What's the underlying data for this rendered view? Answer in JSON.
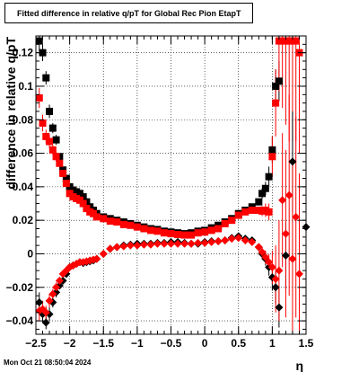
{
  "title": "Fitted difference in relative q/pT for Global Rec Pion EtapT",
  "timestamp": "Mon Oct 21 08:50:04 2024",
  "chart_data": {
    "type": "scatter",
    "xlabel": "η",
    "ylabel": "difference in relative q/pT",
    "xlim": [
      -2.5,
      1.5
    ],
    "ylim": [
      -0.048,
      0.13
    ],
    "grid": true,
    "x_ticks": [
      "−2.5",
      "−2",
      "−1.5",
      "−1",
      "−0.5",
      "0",
      "0.5",
      "1",
      "1.5"
    ],
    "x_tick_values": [
      -2.5,
      -2,
      -1.5,
      -1,
      -0.5,
      0,
      0.5,
      1,
      1.5
    ],
    "y_ticks": [
      "−0.04",
      "−0.02",
      "0",
      "0.02",
      "0.04",
      "0.06",
      "0.08",
      "0.1",
      "0.12"
    ],
    "y_tick_values": [
      -0.04,
      -0.02,
      0,
      0.02,
      0.04,
      0.06,
      0.08,
      0.1,
      0.12
    ],
    "colors": {
      "series_black": "#000000",
      "series_red": "#ff0000"
    },
    "series": [
      {
        "color": "black",
        "marker": "square",
        "x": [
          -2.45,
          -2.4,
          -2.35,
          -2.3,
          -2.25,
          -2.2,
          -2.15,
          -2.1,
          -2.05,
          -2.0,
          -1.95,
          -1.9,
          -1.85,
          -1.8,
          -1.75,
          -1.7,
          -1.65,
          -1.6,
          -1.5,
          -1.4,
          -1.3,
          -1.2,
          -1.1,
          -1.0,
          -0.9,
          -0.8,
          -0.7,
          -0.6,
          -0.5,
          -0.4,
          -0.3,
          -0.2,
          -0.1,
          0.0,
          0.1,
          0.2,
          0.3,
          0.4,
          0.5,
          0.6,
          0.7,
          0.8,
          0.85,
          0.9,
          0.95,
          1.0,
          1.05,
          1.1
        ],
        "y": [
          0.127,
          0.12,
          0.105,
          0.085,
          0.075,
          0.068,
          0.058,
          0.05,
          0.045,
          0.04,
          0.038,
          0.037,
          0.036,
          0.034,
          0.031,
          0.028,
          0.026,
          0.024,
          0.022,
          0.021,
          0.02,
          0.019,
          0.018,
          0.017,
          0.016,
          0.015,
          0.0145,
          0.0135,
          0.013,
          0.0125,
          0.012,
          0.0125,
          0.0135,
          0.014,
          0.0155,
          0.017,
          0.019,
          0.021,
          0.024,
          0.026,
          0.028,
          0.031,
          0.036,
          0.039,
          0.046,
          0.062,
          0.1,
          0.103
        ],
        "err": [
          0.006,
          0.005,
          0.004,
          0.004,
          0.003,
          0.003,
          0.002,
          0.002,
          0.002,
          0.001,
          0.001,
          0.001,
          0.001,
          0.001,
          0.001,
          0.001,
          0.001,
          0.001,
          0.001,
          0.001,
          0.001,
          0.001,
          0.001,
          0.001,
          0.001,
          0.001,
          0.001,
          0.001,
          0.001,
          0.001,
          0.001,
          0.001,
          0.001,
          0.001,
          0.001,
          0.001,
          0.001,
          0.001,
          0.001,
          0.001,
          0.001,
          0.002,
          0.003,
          0.004,
          0.006,
          0.008,
          0.01,
          0.012
        ]
      },
      {
        "color": "red",
        "marker": "square",
        "x": [
          -2.45,
          -2.4,
          -2.35,
          -2.3,
          -2.25,
          -2.2,
          -2.15,
          -2.1,
          -2.05,
          -2.0,
          -1.95,
          -1.9,
          -1.85,
          -1.8,
          -1.75,
          -1.7,
          -1.65,
          -1.6,
          -1.5,
          -1.4,
          -1.3,
          -1.2,
          -1.1,
          -1.0,
          -0.9,
          -0.8,
          -0.7,
          -0.6,
          -0.5,
          -0.4,
          -0.3,
          -0.2,
          -0.1,
          0.0,
          0.1,
          0.2,
          0.3,
          0.4,
          0.5,
          0.6,
          0.7,
          0.8,
          0.85,
          0.9,
          0.95,
          1.0,
          1.05,
          1.1,
          1.15,
          1.2,
          1.25,
          1.3,
          1.35,
          1.4
        ],
        "y": [
          0.093,
          0.078,
          0.07,
          0.067,
          0.062,
          0.058,
          0.054,
          0.048,
          0.042,
          0.036,
          0.034,
          0.033,
          0.032,
          0.03,
          0.027,
          0.025,
          0.024,
          0.022,
          0.021,
          0.0195,
          0.019,
          0.0175,
          0.017,
          0.016,
          0.015,
          0.014,
          0.0135,
          0.0125,
          0.012,
          0.0115,
          0.0112,
          0.0112,
          0.0125,
          0.013,
          0.014,
          0.015,
          0.018,
          0.02,
          0.023,
          0.025,
          0.026,
          0.026,
          0.0255,
          0.026,
          0.025,
          0.058,
          0.09,
          0.127,
          0.127,
          0.127,
          0.127,
          0.127,
          0.127,
          0.12
        ],
        "err": [
          0.006,
          0.005,
          0.004,
          0.004,
          0.003,
          0.003,
          0.002,
          0.002,
          0.002,
          0.001,
          0.001,
          0.001,
          0.001,
          0.001,
          0.001,
          0.001,
          0.001,
          0.001,
          0.001,
          0.001,
          0.001,
          0.001,
          0.001,
          0.001,
          0.001,
          0.001,
          0.001,
          0.001,
          0.001,
          0.001,
          0.001,
          0.001,
          0.001,
          0.001,
          0.001,
          0.001,
          0.001,
          0.001,
          0.001,
          0.001,
          0.001,
          0.002,
          0.003,
          0.004,
          0.005,
          0.012,
          0.02,
          0.03,
          0.04,
          0.05,
          0.06,
          0.06,
          0.06,
          0.06
        ]
      },
      {
        "color": "black",
        "marker": "diamond",
        "x": [
          -2.45,
          -2.4,
          -2.35,
          -2.3,
          -2.25,
          -2.2,
          -2.15,
          -2.1,
          -2.05,
          -2.0,
          -1.95,
          -1.9,
          -1.85,
          -1.8,
          -1.75,
          -1.7,
          -1.65,
          -1.6,
          -1.5,
          -1.4,
          -1.3,
          -1.2,
          -1.1,
          -1.0,
          -0.9,
          -0.8,
          -0.7,
          -0.6,
          -0.5,
          -0.4,
          -0.3,
          -0.2,
          -0.1,
          0.0,
          0.1,
          0.2,
          0.3,
          0.4,
          0.5,
          0.6,
          0.7,
          0.8,
          0.85,
          0.9,
          0.95,
          1.0,
          1.05,
          1.1,
          1.2,
          1.3,
          1.5
        ],
        "y": [
          -0.029,
          -0.036,
          -0.041,
          -0.036,
          -0.029,
          -0.023,
          -0.019,
          -0.016,
          -0.012,
          -0.008,
          -0.007,
          -0.006,
          -0.005,
          -0.0055,
          -0.005,
          -0.0045,
          -0.004,
          -0.003,
          0.0,
          0.003,
          0.004,
          0.005,
          0.0055,
          0.006,
          0.006,
          0.006,
          0.0065,
          0.0065,
          0.007,
          0.007,
          0.0065,
          0.006,
          0.006,
          0.007,
          0.0075,
          0.0075,
          0.008,
          0.0095,
          0.0105,
          0.009,
          0.008,
          0.004,
          0.0,
          -0.003,
          -0.008,
          -0.014,
          -0.02,
          -0.032,
          -0.001,
          0.055,
          0.016
        ],
        "err": [
          0.006,
          0.005,
          0.004,
          0.004,
          0.003,
          0.003,
          0.002,
          0.002,
          0.002,
          0.001,
          0.001,
          0.001,
          0.001,
          0.001,
          0.001,
          0.001,
          0.001,
          0.001,
          0.001,
          0.001,
          0.001,
          0.001,
          0.001,
          0.001,
          0.001,
          0.001,
          0.001,
          0.001,
          0.001,
          0.001,
          0.001,
          0.001,
          0.001,
          0.001,
          0.001,
          0.001,
          0.001,
          0.001,
          0.001,
          0.001,
          0.001,
          0.002,
          0.003,
          0.004,
          0.005,
          0.008,
          0.01,
          0.012,
          0.02,
          0.03,
          0.0
        ]
      },
      {
        "color": "red",
        "marker": "diamond",
        "x": [
          -2.45,
          -2.4,
          -2.35,
          -2.3,
          -2.25,
          -2.2,
          -2.15,
          -2.1,
          -2.05,
          -2.0,
          -1.95,
          -1.9,
          -1.85,
          -1.8,
          -1.75,
          -1.7,
          -1.65,
          -1.6,
          -1.5,
          -1.4,
          -1.3,
          -1.2,
          -1.1,
          -1.0,
          -0.9,
          -0.8,
          -0.7,
          -0.6,
          -0.5,
          -0.4,
          -0.3,
          -0.2,
          -0.1,
          0.0,
          0.1,
          0.2,
          0.3,
          0.4,
          0.5,
          0.6,
          0.7,
          0.8,
          0.85,
          0.9,
          0.95,
          1.0,
          1.05,
          1.1,
          1.15,
          1.2,
          1.25,
          1.3,
          1.35,
          1.4
        ],
        "y": [
          -0.034,
          -0.033,
          -0.035,
          -0.028,
          -0.024,
          -0.02,
          -0.016,
          -0.012,
          -0.01,
          -0.008,
          -0.007,
          -0.006,
          -0.005,
          -0.005,
          -0.0045,
          -0.004,
          -0.0035,
          -0.003,
          0.0,
          0.003,
          0.004,
          0.0045,
          0.005,
          0.005,
          0.0055,
          0.0055,
          0.006,
          0.006,
          0.006,
          0.006,
          0.006,
          0.006,
          0.0065,
          0.0065,
          0.007,
          0.0075,
          0.008,
          0.009,
          0.0095,
          0.008,
          0.007,
          0.004,
          0.001,
          -0.002,
          -0.005,
          -0.008,
          -0.015,
          -0.01,
          0.032,
          0.012,
          0.035,
          -0.003,
          0.022,
          -0.012
        ],
        "err": [
          0.006,
          0.005,
          0.004,
          0.004,
          0.003,
          0.003,
          0.002,
          0.002,
          0.002,
          0.001,
          0.001,
          0.001,
          0.001,
          0.001,
          0.001,
          0.001,
          0.001,
          0.001,
          0.001,
          0.001,
          0.001,
          0.001,
          0.001,
          0.001,
          0.001,
          0.001,
          0.001,
          0.001,
          0.001,
          0.001,
          0.001,
          0.001,
          0.001,
          0.001,
          0.001,
          0.001,
          0.001,
          0.001,
          0.001,
          0.001,
          0.001,
          0.002,
          0.003,
          0.004,
          0.005,
          0.01,
          0.02,
          0.03,
          0.04,
          0.05,
          0.06,
          0.06,
          0.06,
          0.06
        ]
      }
    ]
  }
}
